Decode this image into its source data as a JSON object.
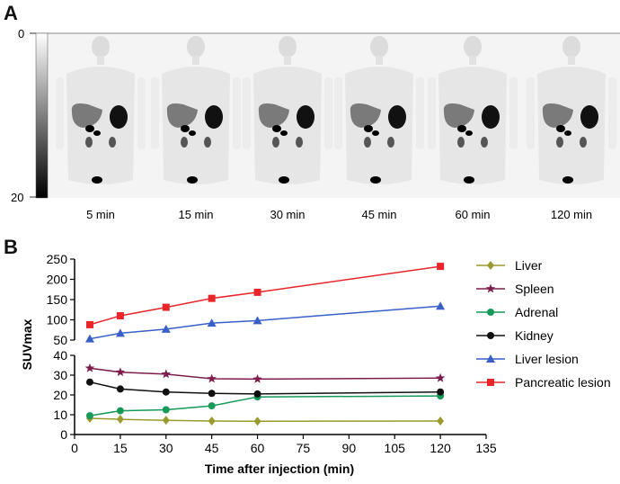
{
  "panel_a": {
    "label": "A",
    "colorbar": {
      "top_label": "0",
      "bottom_label": "20"
    },
    "scan_times": [
      "5 min",
      "15 min",
      "30 min",
      "45 min",
      "60 min",
      "120 min"
    ]
  },
  "panel_b": {
    "label": "B"
  },
  "chart_data": {
    "type": "line",
    "title": "",
    "xlabel": "Time after injection (min)",
    "ylabel": "SUVmax",
    "x_ticks": [
      0,
      15,
      30,
      45,
      60,
      75,
      90,
      105,
      120,
      135
    ],
    "xlim": [
      0,
      135
    ],
    "ylim_upper": [
      50,
      250
    ],
    "ylim_lower": [
      0,
      40
    ],
    "y_ticks_upper": [
      50,
      100,
      150,
      200,
      250
    ],
    "y_ticks_lower": [
      0,
      10,
      20,
      30,
      40
    ],
    "grid": false,
    "legend_position": "right",
    "x": [
      5,
      15,
      30,
      45,
      60,
      120
    ],
    "series": [
      {
        "name": "Liver",
        "marker": "diamond",
        "color": "#9a9a2e",
        "values": [
          8.2,
          7.7,
          7.2,
          6.8,
          6.7,
          6.8
        ]
      },
      {
        "name": "Spleen",
        "marker": "star",
        "color": "#7d1d4b",
        "values": [
          33.5,
          31.5,
          30.5,
          28.2,
          28.0,
          28.5
        ]
      },
      {
        "name": "Adrenal",
        "marker": "circle",
        "color": "#17995a",
        "values": [
          9.5,
          12.0,
          12.5,
          14.5,
          19.0,
          19.5
        ]
      },
      {
        "name": "Kidney",
        "marker": "circle",
        "color": "#111111",
        "values": [
          26.5,
          23.0,
          21.5,
          20.8,
          20.5,
          21.5
        ]
      },
      {
        "name": "Liver lesion",
        "marker": "triangle",
        "color": "#3a5fc8",
        "values": [
          53,
          67,
          77,
          92,
          98,
          134
        ]
      },
      {
        "name": "Pancreatic lesion",
        "marker": "square",
        "color": "#e8262a",
        "values": [
          88,
          110,
          131,
          153,
          168,
          232
        ]
      }
    ]
  }
}
